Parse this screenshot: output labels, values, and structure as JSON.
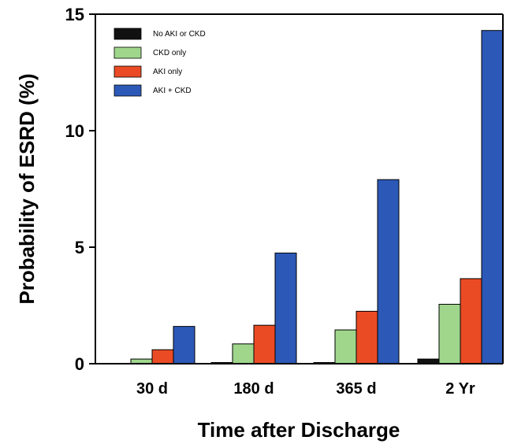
{
  "chart_data": {
    "type": "bar",
    "xlabel": "Time after Discharge",
    "ylabel": "Probability of ESRD (%)",
    "ylim": [
      0,
      15
    ],
    "yticks": [
      0,
      5,
      10,
      15
    ],
    "categories": [
      "30 d",
      "180 d",
      "365 d",
      "2 Yr"
    ],
    "legend_position": "top-left",
    "grid": false,
    "series": [
      {
        "name": "No AKI or CKD",
        "color": "#111111",
        "values": [
          0.0,
          0.05,
          0.05,
          0.2
        ]
      },
      {
        "name": "CKD only",
        "color": "#9fd68c",
        "values": [
          0.2,
          0.85,
          1.45,
          2.55
        ]
      },
      {
        "name": "AKI only",
        "color": "#ea4b25",
        "values": [
          0.6,
          1.65,
          2.25,
          3.65
        ]
      },
      {
        "name": "AKI + CKD",
        "color": "#2c59b8",
        "values": [
          1.6,
          4.75,
          7.9,
          14.3
        ]
      }
    ]
  }
}
